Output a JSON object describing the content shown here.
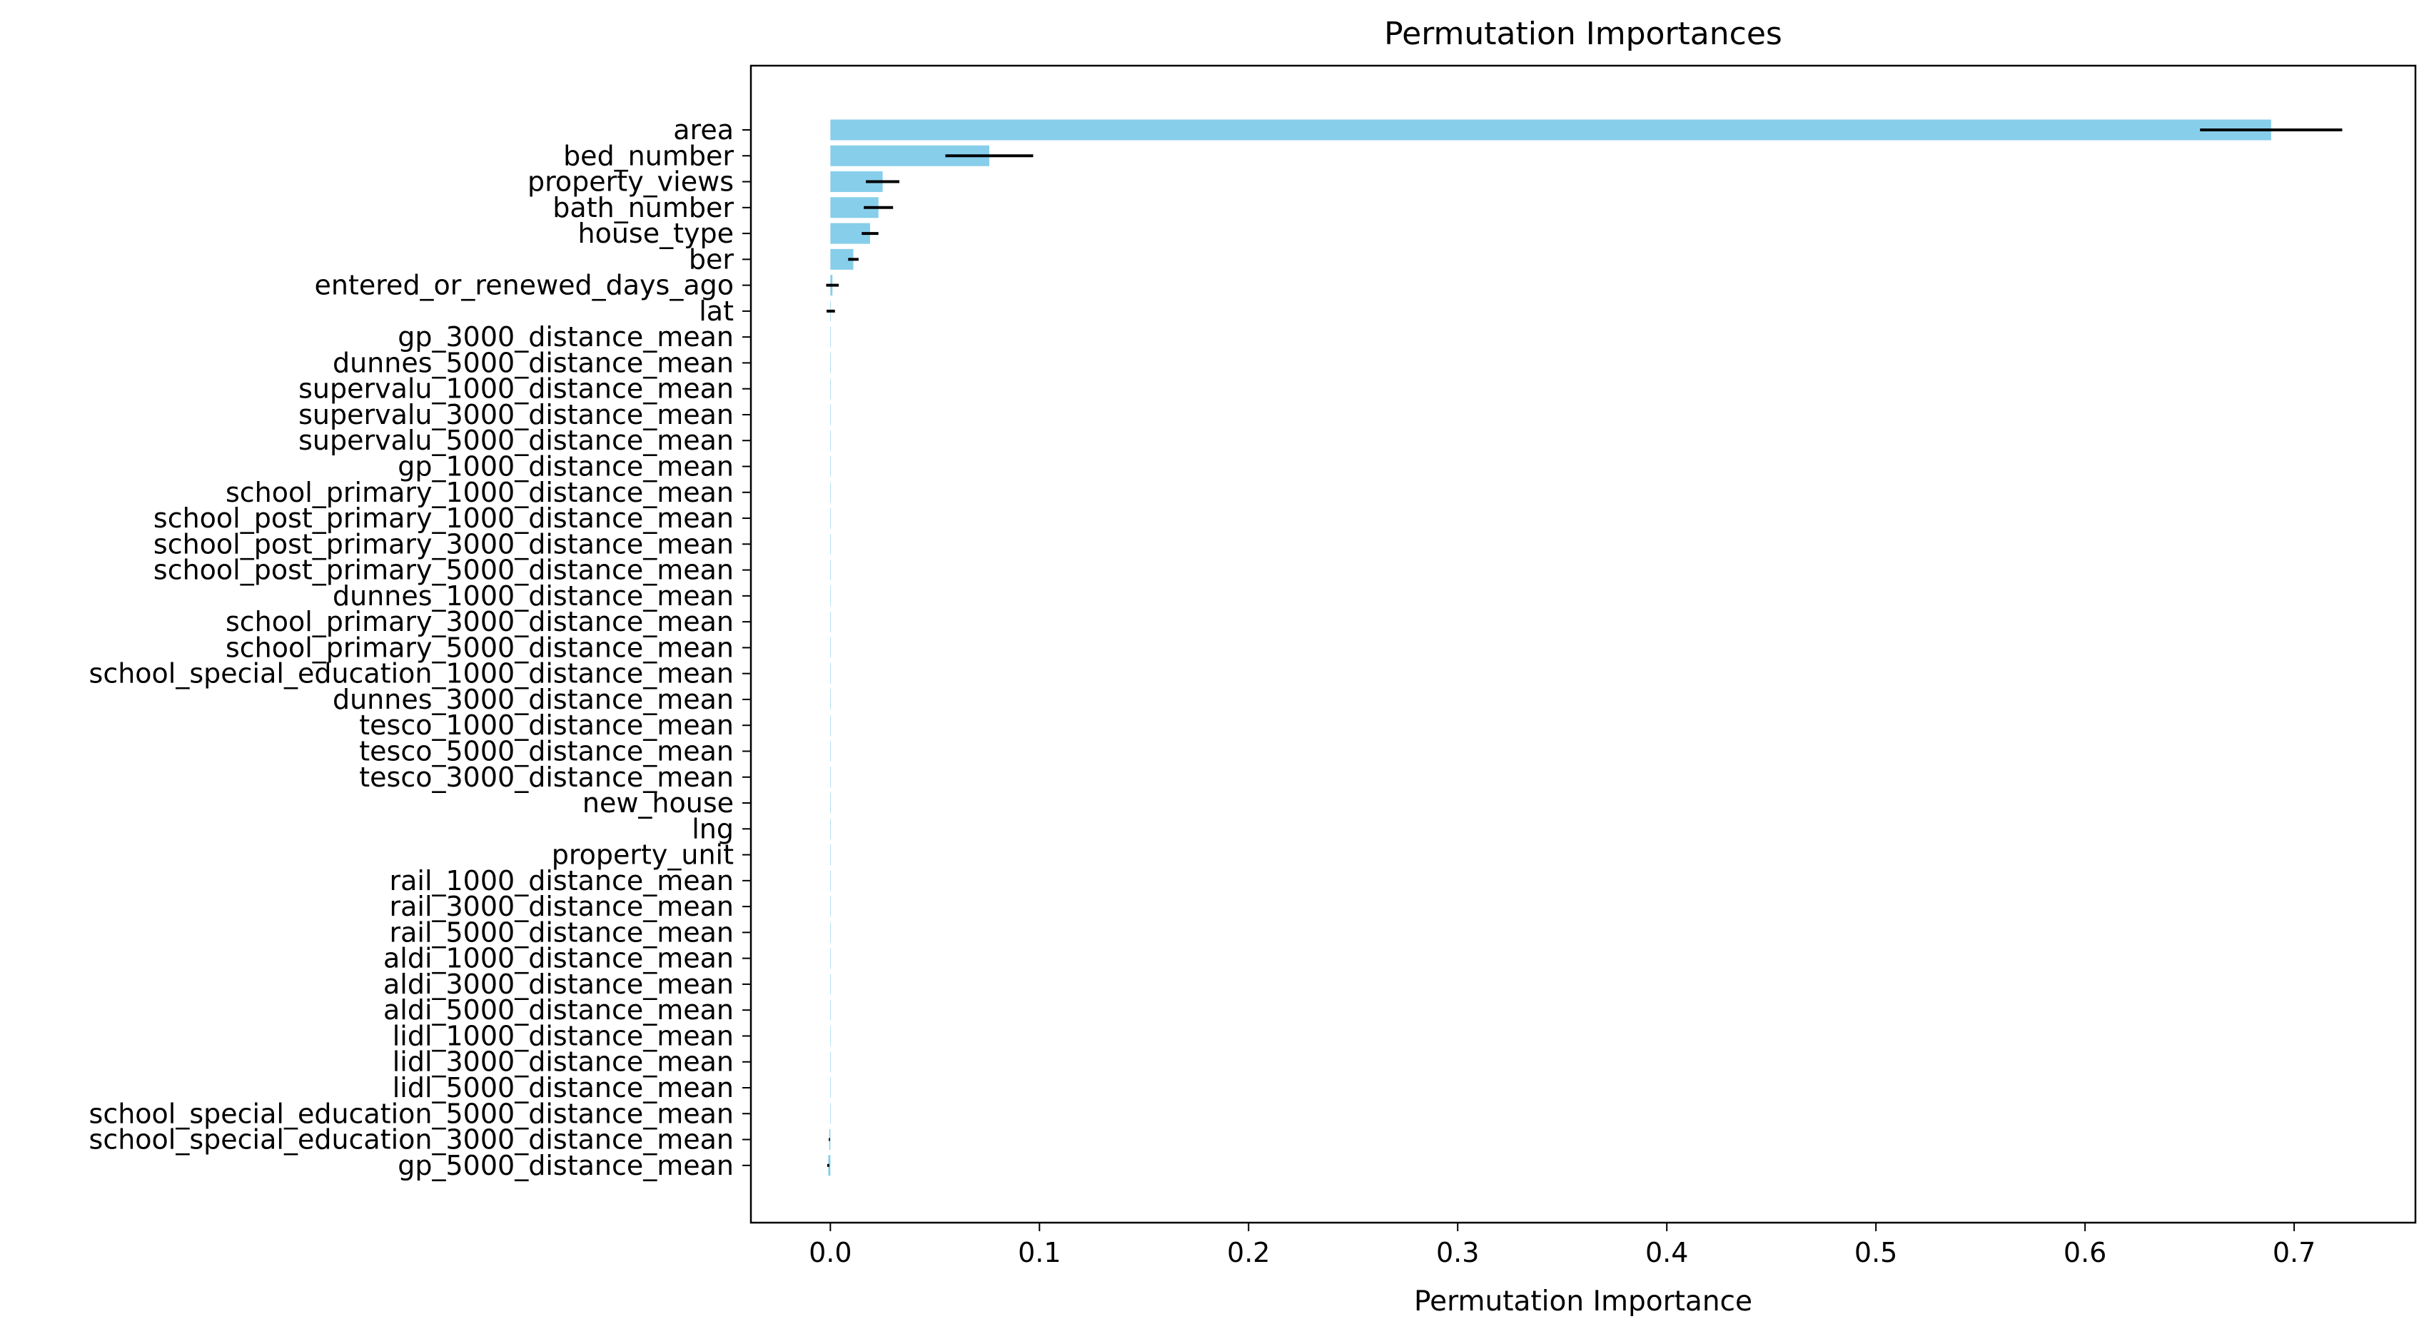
{
  "chart_data": {
    "type": "bar",
    "orientation": "horizontal",
    "title": "Permutation Importances",
    "xlabel": "Permutation Importance",
    "ylabel": "",
    "xlim": [
      -0.038,
      0.758
    ],
    "xticks": [
      0.0,
      0.1,
      0.2,
      0.3,
      0.4,
      0.5,
      0.6,
      0.7
    ],
    "xtick_labels": [
      "0.0",
      "0.1",
      "0.2",
      "0.3",
      "0.4",
      "0.5",
      "0.6",
      "0.7"
    ],
    "grid": false,
    "legend": "none",
    "bar_color": "#87ceeb",
    "error_color": "#000000",
    "categories": [
      "area",
      "bed_number",
      "property_views",
      "bath_number",
      "house_type",
      "ber",
      "entered_or_renewed_days_ago",
      "lat",
      "gp_3000_distance_mean",
      "dunnes_5000_distance_mean",
      "supervalu_1000_distance_mean",
      "supervalu_3000_distance_mean",
      "supervalu_5000_distance_mean",
      "gp_1000_distance_mean",
      "school_primary_1000_distance_mean",
      "school_post_primary_1000_distance_mean",
      "school_post_primary_3000_distance_mean",
      "school_post_primary_5000_distance_mean",
      "dunnes_1000_distance_mean",
      "school_primary_3000_distance_mean",
      "school_primary_5000_distance_mean",
      "school_special_education_1000_distance_mean",
      "dunnes_3000_distance_mean",
      "tesco_1000_distance_mean",
      "tesco_5000_distance_mean",
      "tesco_3000_distance_mean",
      "new_house",
      "lng",
      "property_unit",
      "rail_1000_distance_mean",
      "rail_3000_distance_mean",
      "rail_5000_distance_mean",
      "aldi_1000_distance_mean",
      "aldi_3000_distance_mean",
      "aldi_5000_distance_mean",
      "lidl_1000_distance_mean",
      "lidl_3000_distance_mean",
      "lidl_5000_distance_mean",
      "school_special_education_5000_distance_mean",
      "school_special_education_3000_distance_mean",
      "gp_5000_distance_mean"
    ],
    "values": [
      0.689,
      0.076,
      0.025,
      0.023,
      0.019,
      0.011,
      0.001,
      0.0002,
      0.0,
      0.0,
      0.0,
      0.0,
      0.0,
      0.0,
      0.0,
      0.0,
      0.0,
      0.0,
      0.0,
      0.0,
      0.0,
      0.0,
      0.0,
      0.0,
      0.0,
      0.0,
      0.0,
      0.0,
      0.0,
      0.0,
      0.0,
      0.0,
      0.0,
      0.0,
      0.0,
      0.0,
      0.0,
      0.0,
      0.0,
      -0.0005,
      -0.001
    ],
    "errors": [
      0.034,
      0.021,
      0.008,
      0.007,
      0.004,
      0.0025,
      0.003,
      0.002,
      0.0,
      0.0,
      0.0,
      0.0,
      0.0,
      0.0,
      0.0,
      0.0,
      0.0,
      0.0,
      0.0,
      0.0,
      0.0,
      0.0,
      0.0,
      0.0,
      0.0,
      0.0,
      0.0,
      0.0,
      0.0,
      0.0,
      0.0,
      0.0,
      0.0,
      0.0,
      0.0,
      0.0,
      0.0,
      0.0,
      0.0,
      0.0003,
      0.0005
    ]
  }
}
